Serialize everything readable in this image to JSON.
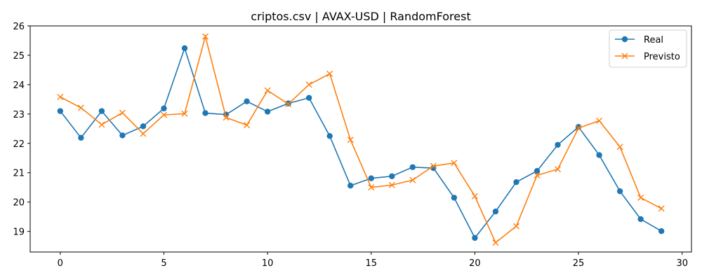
{
  "chart_data": {
    "type": "line",
    "title": "criptos.csv | AVAX-USD | RandomForest",
    "xlabel": "",
    "ylabel": "",
    "x": [
      0,
      1,
      2,
      3,
      4,
      5,
      6,
      7,
      8,
      9,
      10,
      11,
      12,
      13,
      14,
      15,
      16,
      17,
      18,
      19,
      20,
      21,
      22,
      23,
      24,
      25,
      26,
      27,
      28,
      29
    ],
    "xlim": [
      -1.45,
      30.45
    ],
    "ylim": [
      18.3,
      26.0
    ],
    "xticks": [
      0,
      5,
      10,
      15,
      20,
      25,
      30
    ],
    "yticks": [
      19,
      20,
      21,
      22,
      23,
      24,
      25,
      26
    ],
    "grid": false,
    "legend_position": "top-right",
    "series": [
      {
        "name": "Real",
        "color": "#1f77b4",
        "marker": "circle",
        "values": [
          23.1,
          22.19,
          23.1,
          22.27,
          22.58,
          23.19,
          25.24,
          23.03,
          22.98,
          23.43,
          23.08,
          23.36,
          23.55,
          22.25,
          20.56,
          20.81,
          20.88,
          21.19,
          21.16,
          20.15,
          18.78,
          19.68,
          20.68,
          21.06,
          21.95,
          22.56,
          21.6,
          20.37,
          19.42,
          19.01
        ]
      },
      {
        "name": "Previsto",
        "color": "#ff7f0e",
        "marker": "x",
        "values": [
          23.58,
          23.21,
          22.64,
          23.04,
          22.33,
          22.97,
          23.01,
          25.64,
          22.88,
          22.62,
          23.8,
          23.34,
          24.0,
          24.37,
          22.12,
          20.5,
          20.58,
          20.75,
          21.23,
          21.33,
          20.2,
          18.62,
          19.18,
          20.91,
          21.12,
          22.52,
          22.77,
          21.88,
          20.15,
          19.78
        ]
      }
    ]
  }
}
